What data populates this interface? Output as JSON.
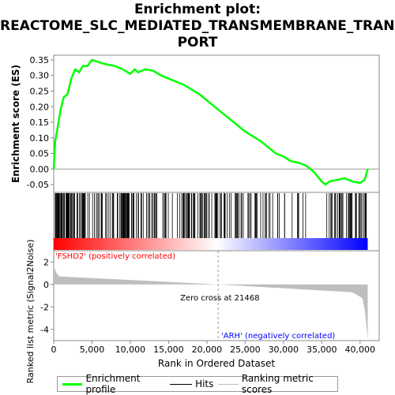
{
  "chart_data": {
    "type": "line",
    "title_lines": [
      "Enrichment plot:",
      "REACTOME_SLC_MEDIATED_TRANSMEMBRANE_TRANS",
      "PORT"
    ],
    "top_panel": {
      "ylabel": "Enrichment score (ES)",
      "ylim": [
        -0.075,
        0.365
      ],
      "yticks": [
        "0.35",
        "0.30",
        "0.25",
        "0.20",
        "0.15",
        "0.10",
        "0.05",
        "0.00",
        "-0.05"
      ],
      "ytick_values": [
        0.35,
        0.3,
        0.25,
        0.2,
        0.15,
        0.1,
        0.05,
        0.0,
        -0.05
      ],
      "series": [
        {
          "name": "Enrichment profile",
          "color": "#00ff00",
          "x": [
            0,
            200,
            500,
            900,
            1300,
            1800,
            2300,
            2800,
            3300,
            3800,
            4400,
            5000,
            5600,
            6200,
            7000,
            8000,
            9000,
            10000,
            10600,
            11000,
            12000,
            13000,
            14000,
            15000,
            16000,
            17000,
            18000,
            19000,
            20000,
            21000,
            22000,
            23000,
            24000,
            25000,
            26000,
            27000,
            28000,
            29000,
            30000,
            31000,
            32000,
            33000,
            34000,
            35000,
            35500,
            36000,
            37000,
            38000,
            39000,
            40000,
            40600,
            41000
          ],
          "y": [
            0.0,
            0.09,
            0.13,
            0.19,
            0.23,
            0.24,
            0.29,
            0.32,
            0.31,
            0.33,
            0.33,
            0.35,
            0.345,
            0.34,
            0.335,
            0.33,
            0.32,
            0.305,
            0.32,
            0.31,
            0.32,
            0.315,
            0.3,
            0.29,
            0.28,
            0.27,
            0.255,
            0.24,
            0.22,
            0.2,
            0.18,
            0.16,
            0.14,
            0.12,
            0.105,
            0.09,
            0.07,
            0.05,
            0.04,
            0.025,
            0.02,
            0.01,
            -0.01,
            -0.04,
            -0.05,
            -0.04,
            -0.035,
            -0.03,
            -0.04,
            -0.045,
            -0.035,
            0.0
          ]
        }
      ]
    },
    "hits_panel": {
      "name": "Hits",
      "hit_density_note": "",
      "gradient_colors": [
        "#ff0000",
        "#ffffff",
        "#0000ff"
      ]
    },
    "bottom_panel": {
      "ylabel": "Ranked list metric (Signal2Noise)",
      "ylim": [
        -5,
        3
      ],
      "yticks": [
        "2",
        "0",
        "-2",
        "-4"
      ],
      "ytick_values": [
        2,
        0,
        -2,
        -4
      ],
      "series_name": "Ranking metric scores",
      "fill_color": "#bebebe",
      "positive_label": "'FSHD2' (positively correlated)",
      "negative_label": "'ARH' (negatively correlated)",
      "zero_cross_label": "Zero cross at 21468",
      "zero_cross": 21468
    },
    "xlabel": "Rank in Ordered Dataset",
    "xlim": [
      0,
      42500
    ],
    "xticks": [
      "0",
      "5,000",
      "10,000",
      "15,000",
      "20,000",
      "25,000",
      "30,000",
      "35,000",
      "40,000"
    ],
    "xtick_values": [
      0,
      5000,
      10000,
      15000,
      20000,
      25000,
      30000,
      35000,
      40000
    ],
    "n_genes": 41000,
    "legend": [
      {
        "label": "Enrichment profile",
        "color": "#00ff00"
      },
      {
        "label": "Hits",
        "color": "#000000"
      },
      {
        "label": "Ranking metric scores",
        "color": "#bebebe"
      }
    ]
  }
}
